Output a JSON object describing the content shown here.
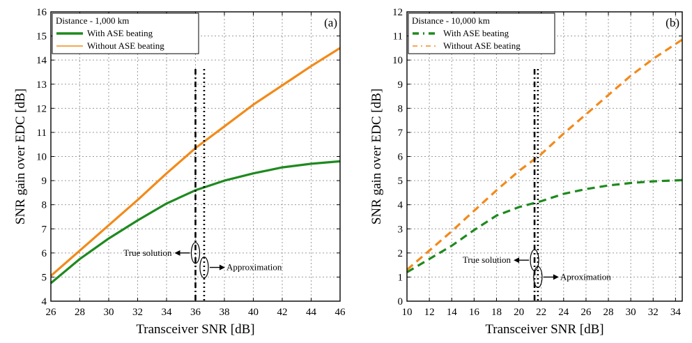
{
  "chart_data": [
    {
      "type": "line",
      "panel_label": "(a)",
      "xlabel": "Transceiver SNR [dB]",
      "ylabel": "SNR gain over EDC [dB]",
      "xlim": [
        26,
        46
      ],
      "ylim": [
        4,
        16
      ],
      "xticks": [
        26,
        28,
        30,
        32,
        34,
        36,
        38,
        40,
        42,
        44,
        46
      ],
      "yticks": [
        4,
        5,
        6,
        7,
        8,
        9,
        10,
        11,
        12,
        13,
        14,
        15,
        16
      ],
      "grid": true,
      "legend": {
        "placement": "top-left",
        "title": "Distance - 1,000 km",
        "entries": [
          "With ASE beating",
          "Without ASE beating"
        ]
      },
      "series": [
        {
          "name": "With ASE beating",
          "color": "#1e8a1e",
          "style": "solid",
          "x": [
            26,
            28,
            30,
            32,
            34,
            36,
            38,
            40,
            42,
            44,
            46
          ],
          "y": [
            4.75,
            5.75,
            6.6,
            7.35,
            8.05,
            8.6,
            9.0,
            9.3,
            9.55,
            9.7,
            9.8
          ]
        },
        {
          "name": "Without ASE beating",
          "color": "#f28a1a",
          "style": "solid",
          "x": [
            26,
            28,
            30,
            32,
            34,
            36,
            38,
            40,
            42,
            44,
            46
          ],
          "y": [
            5.05,
            6.1,
            7.15,
            8.2,
            9.3,
            10.35,
            11.25,
            12.15,
            12.95,
            13.75,
            14.5
          ]
        }
      ],
      "vlines": [
        {
          "x": 36.0,
          "style": "dashdot",
          "label": "True solution"
        },
        {
          "x": 36.6,
          "style": "dotted",
          "label": "Approximation"
        }
      ],
      "annotations": [
        {
          "text": "True solution",
          "anchor_x": 36.0,
          "anchor_y": 6.0,
          "side": "left"
        },
        {
          "text": "Approximation",
          "anchor_x": 36.6,
          "anchor_y": 5.4,
          "side": "right"
        }
      ]
    },
    {
      "type": "line",
      "panel_label": "(b)",
      "xlabel": "Transceiver SNR [dB]",
      "ylabel": "SNR gain over EDC [dB]",
      "xlim": [
        10,
        34.6
      ],
      "ylim": [
        0,
        12
      ],
      "xticks": [
        10,
        12,
        14,
        16,
        18,
        20,
        22,
        24,
        26,
        28,
        30,
        32,
        34
      ],
      "yticks": [
        0,
        1,
        2,
        3,
        4,
        5,
        6,
        7,
        8,
        9,
        10,
        11,
        12
      ],
      "grid": true,
      "legend": {
        "placement": "top-left",
        "title": "Distance - 10,000 km",
        "entries": [
          "With ASE beating",
          "Without ASE beating"
        ]
      },
      "series": [
        {
          "name": "With ASE beating",
          "color": "#1e8a1e",
          "style": "dashed",
          "x": [
            10,
            12,
            14,
            16,
            18,
            20,
            22,
            24,
            26,
            28,
            30,
            32,
            34.6
          ],
          "y": [
            1.2,
            1.75,
            2.3,
            2.95,
            3.55,
            3.9,
            4.15,
            4.45,
            4.65,
            4.8,
            4.9,
            4.97,
            5.02
          ]
        },
        {
          "name": "Without ASE beating",
          "color": "#f28a1a",
          "style": "dashed",
          "x": [
            10,
            12,
            14,
            16,
            18,
            20,
            22,
            24,
            26,
            28,
            30,
            32,
            34.6
          ],
          "y": [
            1.3,
            2.1,
            2.9,
            3.75,
            4.6,
            5.4,
            6.1,
            6.95,
            7.75,
            8.55,
            9.35,
            10.05,
            10.85
          ]
        }
      ],
      "vlines": [
        {
          "x": 21.4,
          "style": "dashdot",
          "label": "True solution"
        },
        {
          "x": 21.7,
          "style": "dotted",
          "label": "Aproximation"
        }
      ],
      "annotations": [
        {
          "text": "True solution",
          "anchor_x": 21.4,
          "anchor_y": 1.7,
          "side": "left"
        },
        {
          "text": "Aproximation",
          "anchor_x": 21.7,
          "anchor_y": 1.0,
          "side": "right"
        }
      ]
    }
  ]
}
